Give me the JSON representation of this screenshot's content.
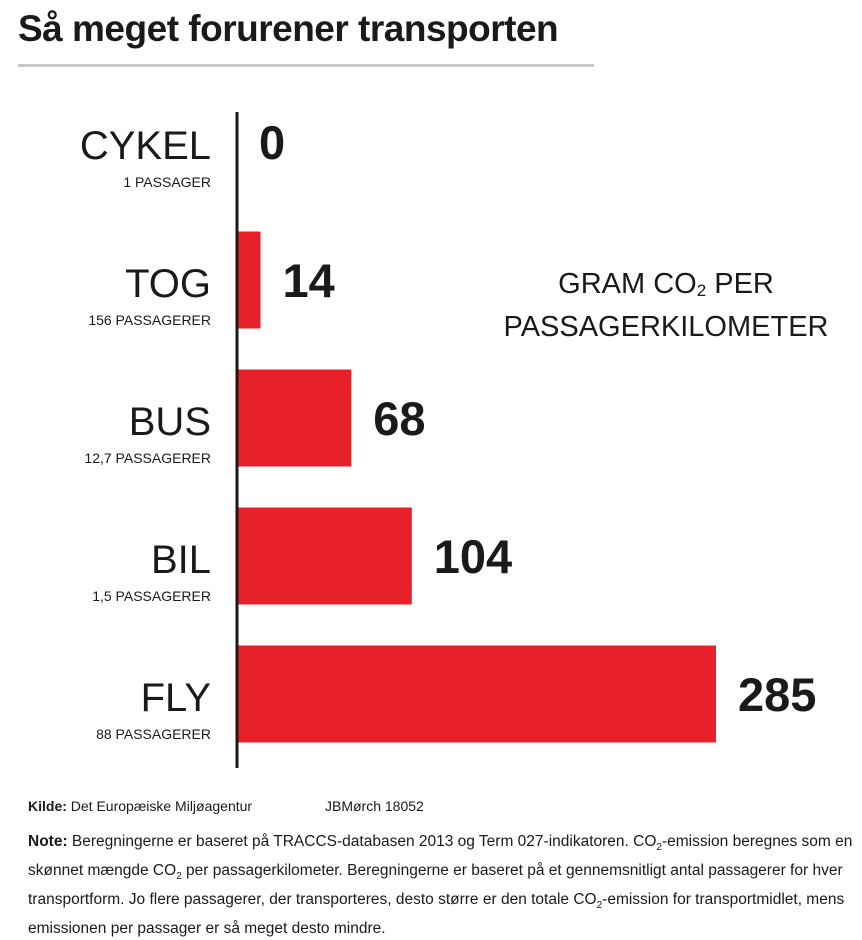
{
  "title": "Så meget forurener transporten",
  "unit_label": {
    "line1_pre": "GRAM CO",
    "line1_sub": "2",
    "line1_post": " PER",
    "line2": "PASSAGERKILOMETER"
  },
  "colors": {
    "bar": "#e8202a",
    "text": "#1a1a1a",
    "axis": "#1a1a1a",
    "rule": "#c8c8c8"
  },
  "chart_data": {
    "type": "bar",
    "orientation": "horizontal",
    "title": "Så meget forurener transporten",
    "xlabel": "GRAM CO2 PER PASSAGERKILOMETER",
    "categories": [
      "CYKEL",
      "TOG",
      "BUS",
      "BIL",
      "FLY"
    ],
    "subtitles": [
      "1 PASSAGER",
      "156 PASSAGERER",
      "12,7 PASSAGERER",
      "1,5 PASSAGERER",
      "88 PASSAGERER"
    ],
    "values": [
      0,
      14,
      68,
      104,
      285
    ],
    "xlim": [
      0,
      285
    ]
  },
  "source": {
    "label": "Kilde:",
    "text": "Det Europæiske Miljøagentur",
    "credit": "JBMørch 18052"
  },
  "note": {
    "label": "Note:",
    "p1": " Beregningerne er baseret på TRACCS-databasen 2013 og Term 027-indikatoren. CO",
    "s1": "2",
    "p2": "-emission beregnes som en skønnet mængde CO",
    "s2": "2",
    "p3": " per passagerkilometer. Beregningerne er baseret på et gennemsnitligt antal passagerer for hver transportform. Jo flere passagerer, der transporteres, desto større er den totale CO",
    "s3": "2",
    "p4": "-emission for transportmidlet, mens emissionen per passager er så meget desto mindre."
  }
}
